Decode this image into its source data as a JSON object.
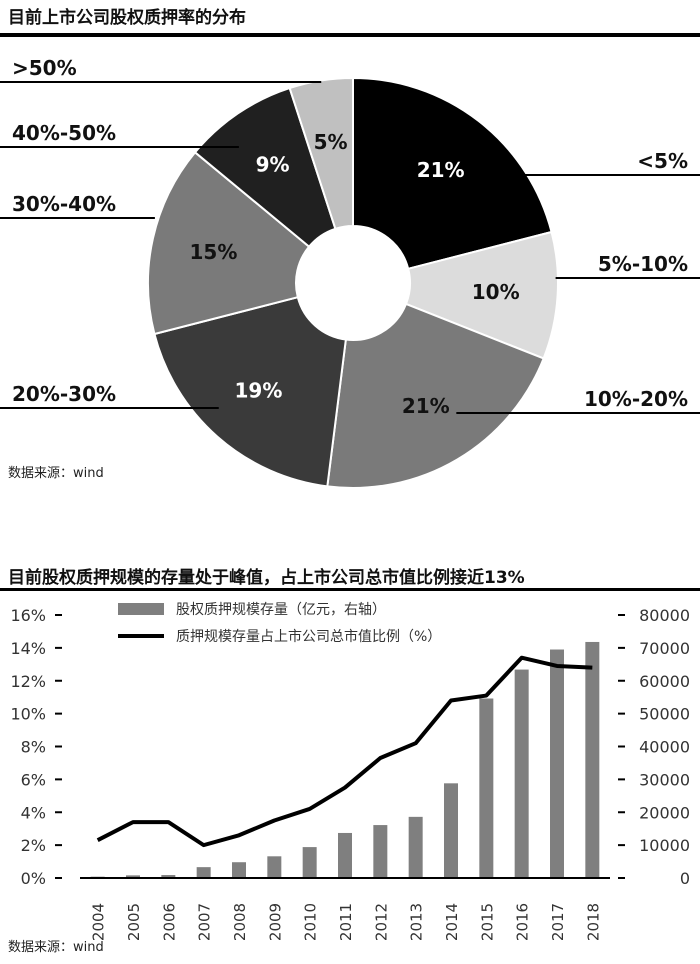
{
  "pie_section": {
    "title": "目前上市公司股权质押率的分布",
    "source": "数据来源：wind"
  },
  "combo_section": {
    "title": "目前股权质押规模的存量处于峰值，占上市公司总市值比例接近13%",
    "source": "数据来源：wind"
  },
  "colors": {
    "black": "#000000",
    "dark": "#3a3a3a",
    "mid": "#7a7a7a",
    "light": "#c0c0c0",
    "lighter": "#dcdcdc",
    "bar": "#7f7f7f"
  },
  "chart_data": [
    {
      "type": "pie",
      "variant": "donut",
      "title": "目前上市公司股权质押率的分布",
      "slices": [
        {
          "label": "<5%",
          "value": 21,
          "value_label": "21%",
          "color": "#000000"
        },
        {
          "label": "5%-10%",
          "value": 10,
          "value_label": "10%",
          "color": "#dcdcdc"
        },
        {
          "label": "10%-20%",
          "value": 21,
          "value_label": "21%",
          "color": "#7a7a7a"
        },
        {
          "label": "20%-30%",
          "value": 19,
          "value_label": "19%",
          "color": "#3a3a3a"
        },
        {
          "label": "30%-40%",
          "value": 15,
          "value_label": "15%",
          "color": "#7a7a7a"
        },
        {
          "label": "40%-50%",
          "value": 9,
          "value_label": "9%",
          "color": "#202020"
        },
        {
          "label": ">50%",
          "value": 5,
          "value_label": "5%",
          "color": "#c0c0c0"
        }
      ]
    },
    {
      "type": "bar",
      "title": "目前股权质押规模的存量处于峰值，占上市公司总市值比例接近13%",
      "categories": [
        "2004",
        "2005",
        "2006",
        "2007",
        "2008",
        "2009",
        "2010",
        "2011",
        "2012",
        "2013",
        "2014",
        "2015",
        "2016",
        "2017",
        "2018"
      ],
      "series": [
        {
          "name": "股权质押规模存量（亿元，右轴）",
          "kind": "bar",
          "axis": "right",
          "color": "#7f7f7f",
          "values": [
            400,
            800,
            900,
            3300,
            4800,
            6600,
            9400,
            13700,
            16100,
            18600,
            28800,
            54600,
            63400,
            69500,
            71800
          ]
        },
        {
          "name": "质押规模存量占上市公司总市值比例（%）",
          "kind": "line",
          "axis": "left",
          "color": "#000000",
          "values": [
            2.3,
            3.4,
            3.4,
            2.0,
            2.6,
            3.5,
            4.2,
            5.5,
            7.3,
            8.2,
            10.8,
            11.1,
            13.4,
            12.9,
            12.8
          ]
        }
      ],
      "y_left": {
        "ticks": [
          "0%",
          "2%",
          "4%",
          "6%",
          "8%",
          "10%",
          "12%",
          "14%",
          "16%"
        ],
        "lim": [
          0,
          16
        ]
      },
      "y_right": {
        "ticks": [
          "0",
          "10000",
          "20000",
          "30000",
          "40000",
          "50000",
          "60000",
          "70000",
          "80000"
        ],
        "lim": [
          0,
          80000
        ]
      },
      "grid": false,
      "legend_position": "top"
    }
  ]
}
